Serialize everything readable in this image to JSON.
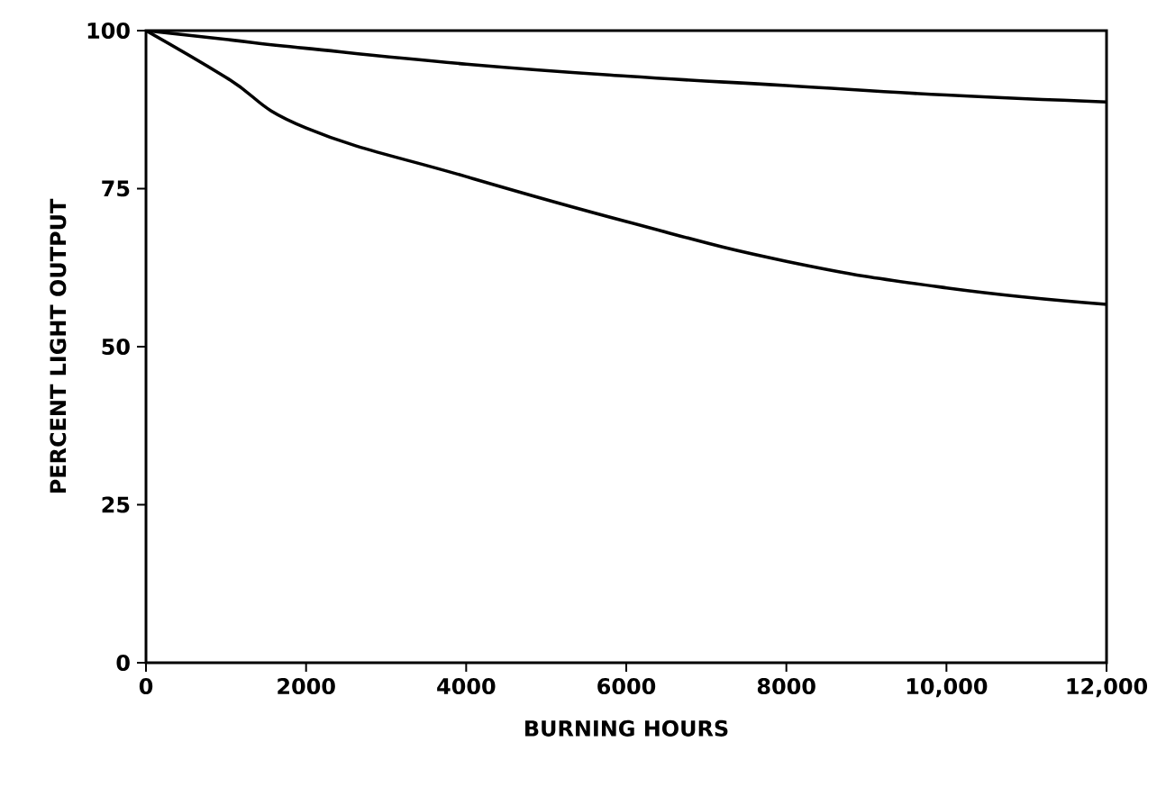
{
  "chart_data": {
    "type": "line",
    "xlabel": "BURNING HOURS",
    "ylabel": "PERCENT LIGHT OUTPUT",
    "x": [
      0,
      1000,
      2000,
      4000,
      6000,
      8000,
      10000,
      12000
    ],
    "series": [
      {
        "color": "#000000",
        "values": [
          100,
          98.6,
          97.2,
          94.7,
          92.8,
          91.3,
          89.8,
          88.7
        ]
      },
      {
        "color": "#000000",
        "values": [
          100,
          92.6,
          84.6,
          76.9,
          69.8,
          63.5,
          59.3,
          56.7
        ]
      }
    ],
    "xlim": [
      0,
      12000
    ],
    "ylim": [
      0,
      100
    ],
    "xticks": [
      0,
      2000,
      4000,
      6000,
      8000,
      {
        "value": 10000,
        "label": "10,000"
      },
      {
        "value": 12000,
        "label": "12,000"
      }
    ],
    "yticks": [
      0,
      25,
      50,
      75,
      100
    ],
    "marker": "none",
    "line_style": "solid",
    "grid": false
  }
}
